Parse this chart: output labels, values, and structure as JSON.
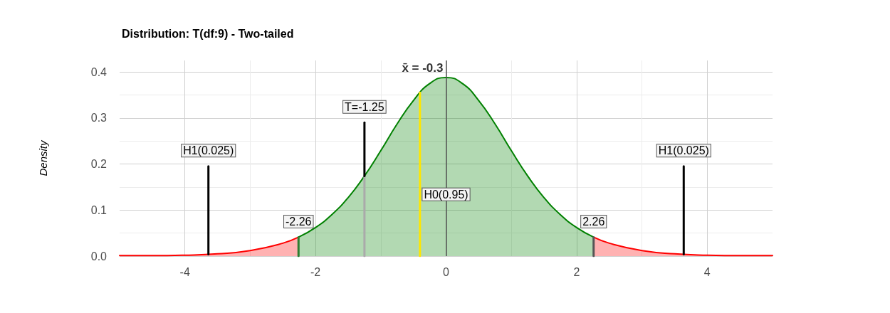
{
  "chart_data": {
    "type": "area",
    "title": "Distribution: T(df:9) - Two-tailed",
    "ylabel": "Density",
    "xlim": [
      -5,
      5
    ],
    "xticks": [
      -4,
      {
        "value": -3,
        "label": null
      },
      -2,
      {
        "value": -1,
        "label": null
      },
      0,
      {
        "value": 1,
        "label": null
      },
      2,
      {
        "value": 3,
        "label": null
      },
      4
    ],
    "ylim": [
      0,
      0.425
    ],
    "yticks": [
      {
        "value": 0,
        "label": "0.0"
      },
      {
        "value": 0.05,
        "label": null
      },
      0.1,
      {
        "value": 0.15,
        "label": null
      },
      0.2,
      {
        "value": 0.25,
        "label": null
      },
      0.3,
      {
        "value": 0.35,
        "label": null
      },
      0.4
    ],
    "grid": true,
    "marker": "none",
    "line_style": "solid",
    "series": [
      {
        "color": "#ff0000",
        "x": [
          -5,
          -4.5,
          -4,
          -3.5,
          -3,
          -2.5,
          -2.26
        ],
        "values": [
          0.001,
          0.001,
          0.002,
          0.005,
          0.012,
          0.028,
          0.041
        ]
      },
      {
        "color": "#ff0000",
        "x": [
          2.26,
          2.5,
          3,
          3.5,
          4,
          4.5,
          5
        ],
        "values": [
          0.041,
          0.028,
          0.012,
          0.005,
          0.002,
          0.001,
          0.001
        ]
      },
      {
        "color": "#008000",
        "x": [
          -2.26,
          -2,
          -1.75,
          -1.5,
          -1.25,
          -1,
          -0.75,
          -0.5,
          -0.25,
          0,
          0.25,
          0.5,
          0.75,
          1,
          1.25,
          1.5,
          1.75,
          2,
          2.26
        ],
        "values": [
          0.041,
          0.062,
          0.09,
          0.127,
          0.174,
          0.229,
          0.287,
          0.338,
          0.375,
          0.388,
          0.375,
          0.338,
          0.287,
          0.229,
          0.174,
          0.127,
          0.09,
          0.062,
          0.041
        ]
      },
      {
        "type": "line",
        "color": "#2e7d32",
        "x": [
          -2.26,
          -2.26
        ],
        "values": [
          0,
          0.041
        ]
      },
      {
        "type": "line",
        "color": "#555555",
        "x": [
          2.26,
          2.26
        ],
        "values": [
          0,
          0.041
        ]
      },
      {
        "type": "line",
        "color": "#aaaaaa",
        "x": [
          -1.25,
          -1.25
        ],
        "values": [
          0,
          0.174
        ]
      },
      {
        "type": "line",
        "color": "#000000",
        "x": [
          -1.25,
          -1.25
        ],
        "values": [
          0.174,
          0.29
        ]
      },
      {
        "type": "line",
        "color": "#000000",
        "x": [
          -3.64,
          -3.64
        ],
        "values": [
          0.004,
          0.195
        ]
      },
      {
        "type": "line",
        "color": "#000000",
        "x": [
          3.64,
          3.64
        ],
        "values": [
          0.004,
          0.195
        ]
      },
      {
        "type": "line",
        "color": "#ffe600",
        "x": [
          -0.4,
          -0.4
        ],
        "values": [
          0,
          0.355
        ]
      }
    ],
    "ref_lines": [
      {
        "axis": "x",
        "value": 0,
        "color": "#555555"
      }
    ],
    "annotations": [
      "x̄ = -0.3",
      {
        "text": "H1(0.025)",
        "x": -3.64,
        "y": 0.195
      },
      {
        "text": "H1(0.025)",
        "x": 3.64,
        "y": 0.195
      },
      {
        "text": "T=-1.25",
        "x": -1.25,
        "y": 0.29
      },
      {
        "text": "-2.26",
        "x": -2.26,
        "y": 0.041
      },
      {
        "text": "2.26",
        "x": 2.26,
        "y": 0.041
      },
      {
        "text": "H0(0.95)",
        "x": 0,
        "y": 0.1
      }
    ]
  }
}
